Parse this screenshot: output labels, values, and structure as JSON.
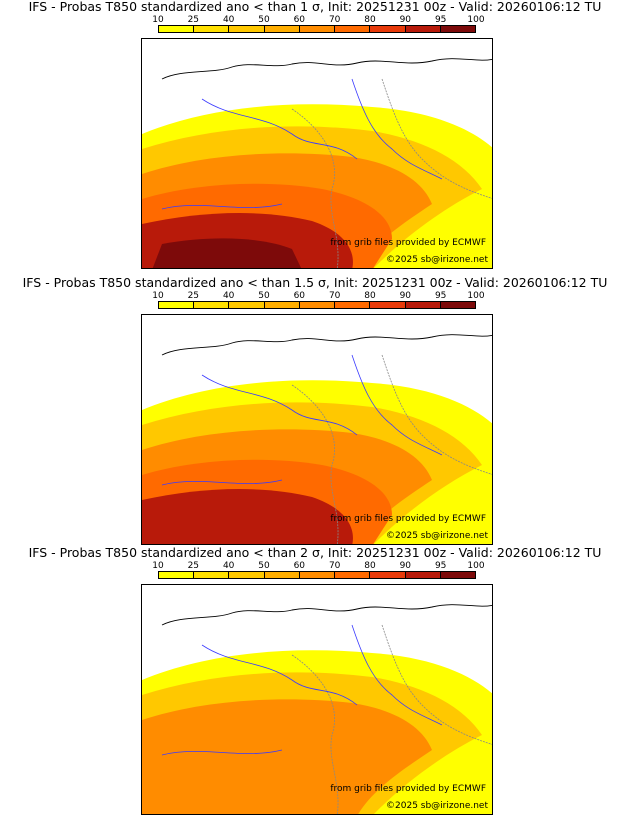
{
  "colorbar": {
    "ticks": [
      "10",
      "25",
      "40",
      "50",
      "60",
      "70",
      "80",
      "90",
      "95",
      "100"
    ],
    "colors": [
      "#ffff00",
      "#ffe000",
      "#ffc800",
      "#ffae00",
      "#ff8c00",
      "#ff6a00",
      "#e83a0a",
      "#b81a0a",
      "#7d0a0a"
    ]
  },
  "panels": [
    {
      "title": "IFS - Probas T850  standardized ano < than 1 σ, Init: 20251231 00z - Valid: 20260106:12 TU",
      "level": 3
    },
    {
      "title": "IFS - Probas T850  standardized ano < than 1.5 σ, Init: 20251231 00z - Valid: 20260106:12 TU",
      "level": 2
    },
    {
      "title": "IFS - Probas T850  standardized ano < than 2 σ, Init: 20251231 00z - Valid: 20260106:12 TU",
      "level": 1
    }
  ],
  "credits": {
    "source": "from grib files provided by ECMWF",
    "copyright": "©2025 sb@irizone.net"
  }
}
